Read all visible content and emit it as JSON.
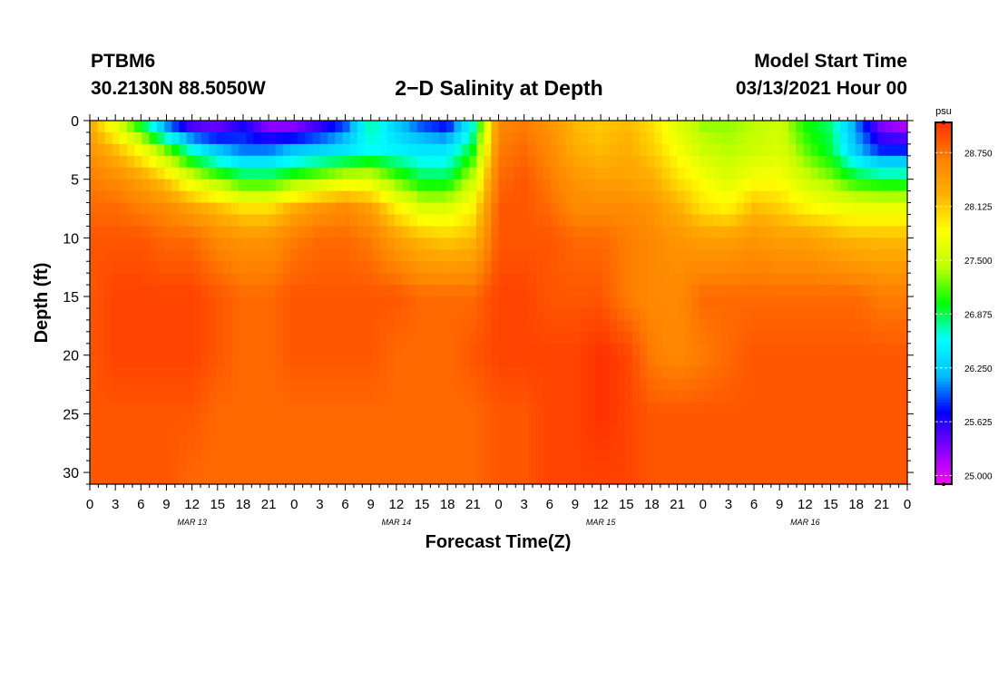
{
  "header": {
    "station": "PTBM6",
    "coords": "30.2130N 88.5050W",
    "title": "2−D Salinity at Depth",
    "start_label": "Model Start Time",
    "start_value": "03/13/2021 Hour 00"
  },
  "chart_data": {
    "type": "heatmap",
    "title": "2−D Salinity at Depth",
    "xlabel": "Forecast Time(Z)",
    "ylabel": "Depth (ft)",
    "x_range_hours": [
      0,
      96
    ],
    "ylim": [
      0,
      31
    ],
    "x_ticks": [
      "0",
      "3",
      "6",
      "9",
      "12",
      "15",
      "18",
      "21",
      "0",
      "3",
      "6",
      "9",
      "12",
      "15",
      "18",
      "21",
      "0",
      "3",
      "6",
      "9",
      "12",
      "15",
      "18",
      "21",
      "0",
      "3",
      "6",
      "9",
      "12",
      "15",
      "18",
      "21",
      "0"
    ],
    "day_labels": [
      {
        "label": "MAR 13",
        "hour": 12
      },
      {
        "label": "MAR 14",
        "hour": 36
      },
      {
        "label": "MAR 15",
        "hour": 60
      },
      {
        "label": "MAR 16",
        "hour": 84
      }
    ],
    "y_ticks": [
      0,
      5,
      10,
      15,
      20,
      25,
      30
    ],
    "colorbar": {
      "unit": "psu",
      "min": 24.9,
      "max": 29.1,
      "ticks": [
        "25.000",
        "25.625",
        "26.250",
        "26.875",
        "27.500",
        "28.125",
        "28.750"
      ],
      "colors": [
        "#ff00ff",
        "#8000ff",
        "#0000ff",
        "#00c0ff",
        "#00ffff",
        "#00ff00",
        "#c0ff00",
        "#ffff00",
        "#ffb000",
        "#ff8000",
        "#ff3000"
      ]
    },
    "x_hours": [
      0,
      3,
      6,
      9,
      12,
      15,
      18,
      21,
      24,
      27,
      30,
      33,
      36,
      39,
      42,
      45,
      48,
      51,
      54,
      57,
      60,
      63,
      66,
      69,
      72,
      75,
      78,
      81,
      84,
      87,
      90,
      93,
      96
    ],
    "depths_ft": [
      0,
      2.5,
      5,
      7.5,
      10,
      15,
      20,
      25,
      31
    ],
    "salinity_psu": [
      [
        28.3,
        27.6,
        26.8,
        25.8,
        25.2,
        25.2,
        25.6,
        25.1,
        25.1,
        25.4,
        25.8,
        26.8,
        26.2,
        25.8,
        25.6,
        26.6,
        28.6,
        28.7,
        28.5,
        28.2,
        28.1,
        28.2,
        28.0,
        27.6,
        27.3,
        27.3,
        27.4,
        27.5,
        27.0,
        26.8,
        26.0,
        25.2,
        25.0
      ],
      [
        28.5,
        28.2,
        27.8,
        27.2,
        26.6,
        26.2,
        26.0,
        26.0,
        26.2,
        26.3,
        26.4,
        26.6,
        26.5,
        26.4,
        26.4,
        27.0,
        28.7,
        28.8,
        28.6,
        28.3,
        28.2,
        28.3,
        28.1,
        27.8,
        27.5,
        27.4,
        27.5,
        27.6,
        27.2,
        26.9,
        26.2,
        25.8,
        25.8
      ],
      [
        28.7,
        28.6,
        28.4,
        28.1,
        27.6,
        27.3,
        27.0,
        27.0,
        27.2,
        27.4,
        27.6,
        27.6,
        27.2,
        26.9,
        26.9,
        27.5,
        28.8,
        28.9,
        28.7,
        28.5,
        28.4,
        28.4,
        28.3,
        28.0,
        27.8,
        27.6,
        27.8,
        27.8,
        27.5,
        27.3,
        27.0,
        26.9,
        26.9
      ],
      [
        28.8,
        28.8,
        28.7,
        28.6,
        28.4,
        28.2,
        28.0,
        28.0,
        28.3,
        28.5,
        28.6,
        28.4,
        27.9,
        27.6,
        27.6,
        27.9,
        28.9,
        28.9,
        28.8,
        28.6,
        28.6,
        28.6,
        28.5,
        28.3,
        28.0,
        27.9,
        28.2,
        28.1,
        27.9,
        27.8,
        27.7,
        27.7,
        27.7
      ],
      [
        28.9,
        28.9,
        28.9,
        28.8,
        28.8,
        28.6,
        28.5,
        28.5,
        28.7,
        28.8,
        28.8,
        28.7,
        28.4,
        28.2,
        28.1,
        28.2,
        28.9,
        28.9,
        28.9,
        28.8,
        28.8,
        28.7,
        28.6,
        28.5,
        28.4,
        28.4,
        28.5,
        28.4,
        28.4,
        28.3,
        28.2,
        28.2,
        28.2
      ],
      [
        28.9,
        29.0,
        29.0,
        29.0,
        29.0,
        28.9,
        28.8,
        28.8,
        28.9,
        28.9,
        28.9,
        28.9,
        28.9,
        28.8,
        28.8,
        28.8,
        29.0,
        29.0,
        28.9,
        28.9,
        28.9,
        28.7,
        28.6,
        28.6,
        28.8,
        28.8,
        28.8,
        28.8,
        28.8,
        28.8,
        28.8,
        28.7,
        28.7
      ],
      [
        28.9,
        29.0,
        29.0,
        29.0,
        29.0,
        28.9,
        28.8,
        28.8,
        28.9,
        28.9,
        28.9,
        28.9,
        28.8,
        28.8,
        28.8,
        28.9,
        29.0,
        29.0,
        29.0,
        29.0,
        29.1,
        29.0,
        28.7,
        28.6,
        28.7,
        28.8,
        28.9,
        28.9,
        28.9,
        28.9,
        28.9,
        28.9,
        28.9
      ],
      [
        28.9,
        28.9,
        28.9,
        28.9,
        28.9,
        28.8,
        28.8,
        28.8,
        28.8,
        28.8,
        28.8,
        28.8,
        28.8,
        28.8,
        28.8,
        28.8,
        28.9,
        28.9,
        29.0,
        29.0,
        29.1,
        29.0,
        28.9,
        28.9,
        28.9,
        28.9,
        28.9,
        28.9,
        28.9,
        28.9,
        28.9,
        28.9,
        28.9
      ],
      [
        28.9,
        28.9,
        28.9,
        28.9,
        28.8,
        28.8,
        28.8,
        28.8,
        28.8,
        28.8,
        28.8,
        28.8,
        28.8,
        28.8,
        28.8,
        28.8,
        28.9,
        28.9,
        29.0,
        29.0,
        29.0,
        29.0,
        28.9,
        28.9,
        28.9,
        28.9,
        28.9,
        28.9,
        28.9,
        28.9,
        28.9,
        28.9,
        28.9
      ]
    ]
  }
}
